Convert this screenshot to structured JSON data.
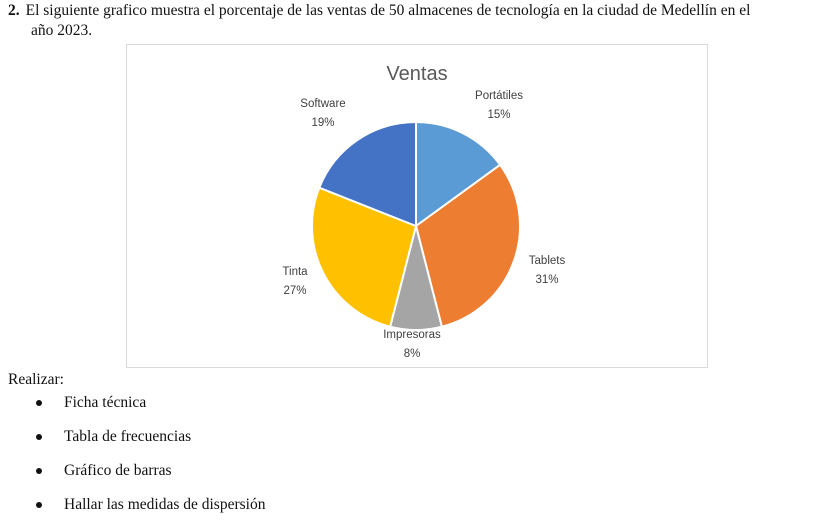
{
  "question": {
    "number": "2.",
    "line1": "El siguiente grafico muestra el porcentaje de las ventas de 50 almacenes de tecnología en la ciudad de Medellín en el",
    "line2": "año 2023."
  },
  "chart_data": {
    "type": "pie",
    "title": "Ventas",
    "categories": [
      "Portátiles",
      "Tablets",
      "Impresoras",
      "Tinta",
      "Software"
    ],
    "values": [
      15,
      31,
      8,
      27,
      19
    ],
    "labels": [
      "15%",
      "31%",
      "8%",
      "27%",
      "19%"
    ],
    "colors": [
      "#5B9BD5",
      "#ED7D31",
      "#A5A5A5",
      "#FFC000",
      "#4472C4"
    ],
    "legend": "none"
  },
  "realizar": {
    "label": "Realizar:",
    "items": [
      "Ficha técnica",
      "Tabla de frecuencias",
      "Gráfico de barras",
      "Hallar las medidas de dispersión"
    ]
  }
}
